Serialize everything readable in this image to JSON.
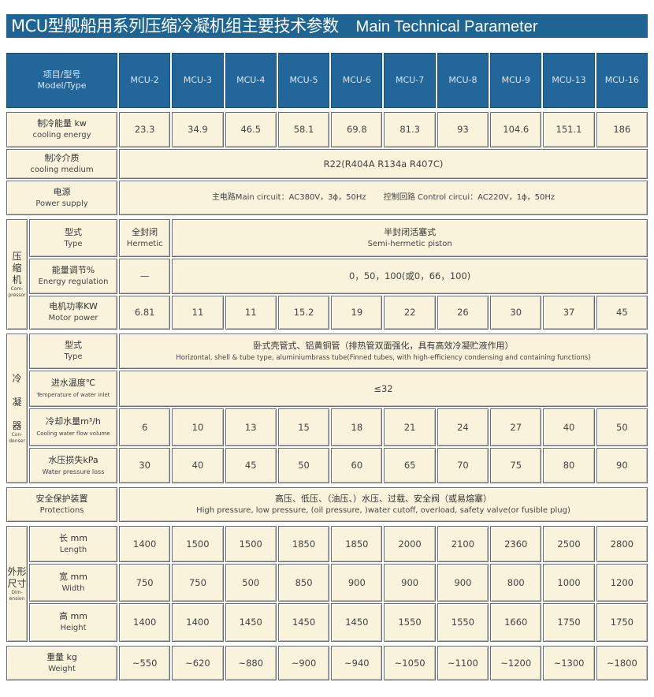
{
  "title": {
    "cn": "MCU型舰船用系列压缩冷凝机组主要技术参数",
    "en": "Main Technical Parameter"
  },
  "header": {
    "label_cn": "项目/型号",
    "label_en": "Model/Type",
    "models": [
      "MCU-2",
      "MCU-3",
      "MCU-4",
      "MCU-5",
      "MCU-6",
      "MCU-7",
      "MCU-8",
      "MCU-9",
      "MCU-13",
      "MCU-16"
    ]
  },
  "cooling_energy": {
    "cn": "制冷能量 kw",
    "en": "cooling energy",
    "values": [
      "23.3",
      "34.9",
      "46.5",
      "58.1",
      "69.8",
      "81.3",
      "93",
      "104.6",
      "151.1",
      "186"
    ]
  },
  "cooling_medium": {
    "cn": "制冷介质",
    "en": "cooling medium",
    "value": "R22(R404A R134a R407C)"
  },
  "power_supply": {
    "cn": "电源",
    "en": "Power supply",
    "main": "主电路Main circuit：AC380V，3ϕ，50Hz",
    "control": "控制回路 Control circui：AC220V，1ϕ，50Hz"
  },
  "compressor": {
    "group_cn": [
      "压",
      "缩",
      "机"
    ],
    "group_en": [
      "Com-",
      "pressor"
    ],
    "type": {
      "cn": "型式",
      "en": "Type",
      "first_cn": "全封闭",
      "first_en": "Hermetic",
      "rest_cn": "半封闭活塞式",
      "rest_en": "Semi-hermetic piston"
    },
    "energy_regulation": {
      "cn": "能量调节%",
      "en": "Energy regulation",
      "first": "—",
      "rest": "0，50，100(或0，66，100)"
    },
    "motor_power": {
      "cn": "电机功率KW",
      "en": "Motor power",
      "values": [
        "6.81",
        "11",
        "11",
        "15.2",
        "19",
        "22",
        "26",
        "30",
        "37",
        "45"
      ]
    }
  },
  "condenser": {
    "group_cn": [
      "冷",
      "凝",
      "器"
    ],
    "group_en": [
      "Con-",
      "denser"
    ],
    "type": {
      "cn": "型式",
      "en": "Type",
      "value_cn": "卧式壳管式、铝黄铜管（排热管双面强化，具有高效冷凝贮液作用）",
      "value_en": "Horizontal, shell & tube type, aluminiumbrass tube(Finned tubes, with high-efficiency condensing and containing functions)"
    },
    "water_inlet_temp": {
      "cn": "进水温度℃",
      "en": "Temperature of water inlet",
      "value": "≤32"
    },
    "cooling_water_flow": {
      "cn": "冷却水量m³/h",
      "en": "Cooling water flow volume",
      "values": [
        "6",
        "10",
        "13",
        "15",
        "18",
        "21",
        "24",
        "27",
        "40",
        "50"
      ]
    },
    "water_pressure_loss": {
      "cn": "水压损失kPa",
      "en": "Water pressure loss",
      "values": [
        "30",
        "40",
        "45",
        "50",
        "60",
        "65",
        "70",
        "75",
        "80",
        "90"
      ]
    }
  },
  "protections": {
    "cn": "安全保护装置",
    "en": "Protections",
    "value_cn": "高压、低压、（油压、）水压、过载、安全阀（或易熔塞）",
    "value_en": "High pressure, low pressure, (oil pressure, )water cutoff, overload, safety valve(or fusible plug)"
  },
  "dimension": {
    "group_cn": [
      "外形",
      "尺寸"
    ],
    "group_en": [
      "Dim-",
      "ension"
    ],
    "length": {
      "cn": "长 mm",
      "en": "Length",
      "values": [
        "1400",
        "1500",
        "1500",
        "1850",
        "1850",
        "2000",
        "2100",
        "2360",
        "2500",
        "2800"
      ]
    },
    "width": {
      "cn": "宽 mm",
      "en": "Width",
      "values": [
        "750",
        "750",
        "500",
        "850",
        "900",
        "900",
        "900",
        "800",
        "1000",
        "1200"
      ]
    },
    "height": {
      "cn": "高 mm",
      "en": "Height",
      "values": [
        "1400",
        "1400",
        "1450",
        "1450",
        "1450",
        "1550",
        "1550",
        "1660",
        "1750",
        "1750"
      ]
    }
  },
  "weight": {
    "cn": "重量 kg",
    "en": "Weight",
    "values": [
      "~550",
      "~620",
      "~880",
      "~900",
      "~940",
      "~1050",
      "~1100",
      "~1200",
      "~1300",
      "~1800"
    ]
  },
  "colors": {
    "title_bar": "#1f6594",
    "header": "#23679a",
    "cell": "#f8f3da"
  }
}
